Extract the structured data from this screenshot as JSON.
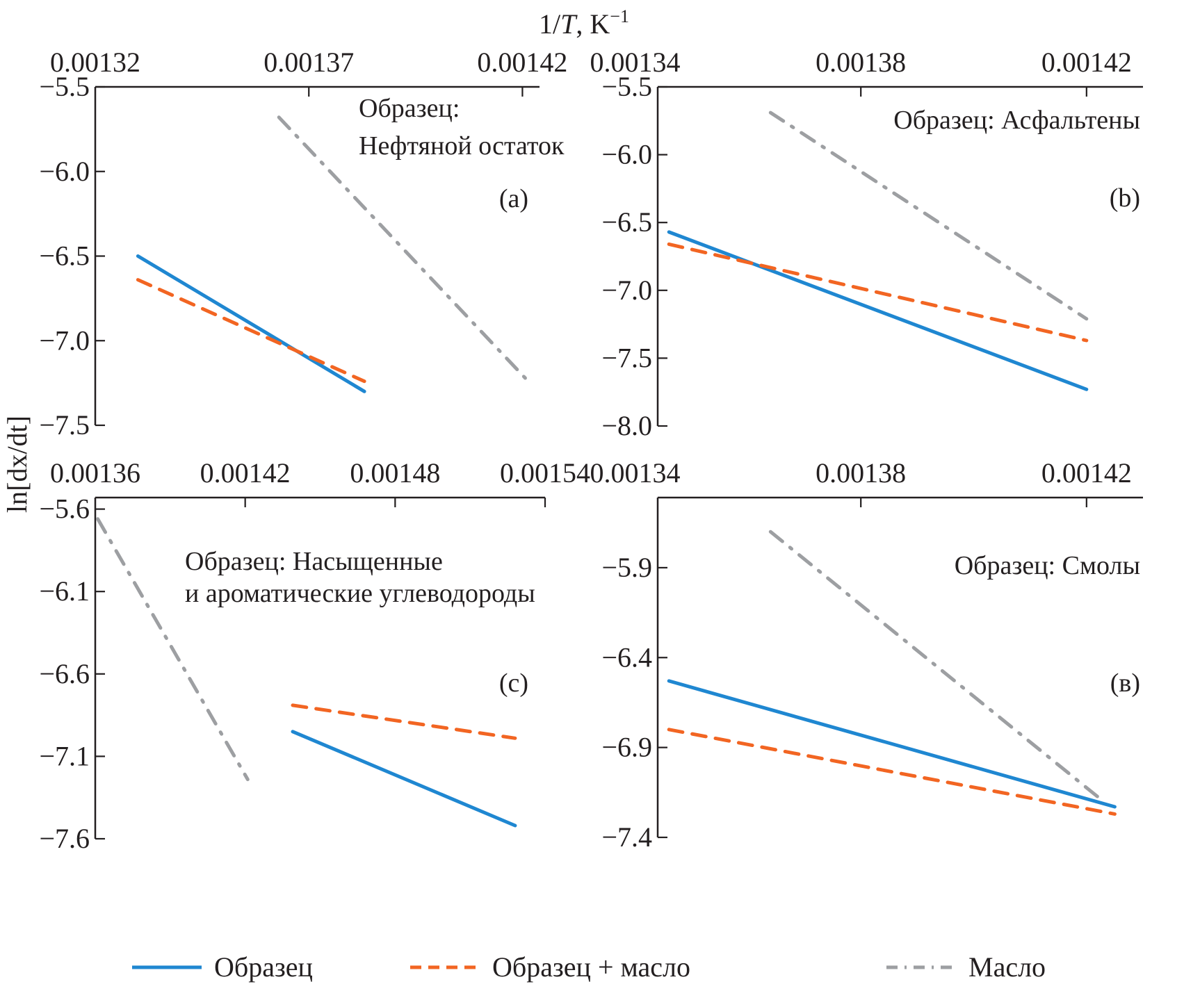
{
  "chart_data": {
    "type": "line",
    "top_xlabel": "1/T, K⁻¹",
    "ylabel": "ln[dx/dt]",
    "legend": {
      "placement": "bottom",
      "entries": [
        {
          "name": "Образец",
          "style": "solid",
          "color": "#1f87d1"
        },
        {
          "name": "Образец + масло",
          "style": "dashed",
          "color": "#f26522"
        },
        {
          "name": "Масло",
          "style": "dashdot",
          "color": "#9d9fa2"
        }
      ]
    },
    "panels": [
      {
        "id": "a",
        "tag": "(a)",
        "title_lines": [
          "Образец:",
          "Нефтяной остаток"
        ],
        "xlim": [
          0.00132,
          0.001424
        ],
        "xticks": [
          0.00132,
          0.00137,
          0.00142
        ],
        "xtick_labels": [
          "0.00132",
          "0.00137",
          "0.00142"
        ],
        "ylim": [
          -7.5,
          -5.5
        ],
        "yticks": [
          -5.5,
          -6.0,
          -6.5,
          -7.0,
          -7.5
        ],
        "ytick_labels": [
          "−5.5",
          "−6.0",
          "−6.5",
          "−7.0",
          "−7.5"
        ],
        "series": [
          {
            "name": "Образец",
            "x": [
              0.00133,
              0.001383
            ],
            "y": [
              -6.5,
              -7.3
            ]
          },
          {
            "name": "Образец + масло",
            "x": [
              0.00133,
              0.001383
            ],
            "y": [
              -6.64,
              -7.24
            ]
          },
          {
            "name": "Масло",
            "x": [
              0.001363,
              0.001421
            ],
            "y": [
              -5.68,
              -7.23
            ]
          }
        ]
      },
      {
        "id": "b",
        "tag": "(b)",
        "title_lines": [
          "Образец: Асфальтены"
        ],
        "xlim": [
          0.001344,
          0.00143
        ],
        "xticks": [
          0.00134,
          0.00138,
          0.00142
        ],
        "xtick_labels": [
          "0.00134",
          "0.00138",
          "0.00142"
        ],
        "ylim": [
          -8.0,
          -5.5
        ],
        "yticks": [
          -5.5,
          -6.0,
          -6.5,
          -7.0,
          -7.5,
          -8.0
        ],
        "ytick_labels": [
          "−5.5",
          "−6.0",
          "−6.5",
          "−7.0",
          "−7.5",
          "−8.0"
        ],
        "series": [
          {
            "name": "Образец",
            "x": [
              0.001346,
              0.00142
            ],
            "y": [
              -6.57,
              -7.73
            ]
          },
          {
            "name": "Образец + масло",
            "x": [
              0.001346,
              0.00142
            ],
            "y": [
              -6.66,
              -7.37
            ]
          },
          {
            "name": "Масло",
            "x": [
              0.001364,
              0.00142
            ],
            "y": [
              -5.69,
              -7.21
            ]
          }
        ]
      },
      {
        "id": "c",
        "tag": "(c)",
        "title_lines": [
          "Образец: Насыщенные",
          "и ароматические углеводороды"
        ],
        "xlim": [
          0.00136,
          0.00154
        ],
        "xticks": [
          0.00136,
          0.00142,
          0.00148,
          0.00154
        ],
        "xtick_labels": [
          "0.00136",
          "0.00142",
          "0.00148",
          "0.00154"
        ],
        "ylim": [
          -7.6,
          -5.53
        ],
        "yticks": [
          -5.6,
          -6.1,
          -6.6,
          -7.1,
          -7.6
        ],
        "ytick_labels": [
          "−5.6",
          "−6.1",
          "−6.6",
          "−7.1",
          "−7.6"
        ],
        "series": [
          {
            "name": "Образец",
            "x": [
              0.001439,
              0.001528
            ],
            "y": [
              -6.95,
              -7.52
            ]
          },
          {
            "name": "Образец + масло",
            "x": [
              0.001439,
              0.001528
            ],
            "y": [
              -6.79,
              -6.99
            ]
          },
          {
            "name": "Масло",
            "x": [
              0.001361,
              0.001421
            ],
            "y": [
              -5.66,
              -7.24
            ]
          }
        ]
      },
      {
        "id": "d",
        "tag": "(в)",
        "title_lines": [
          "Образец: Смолы"
        ],
        "xlim": [
          0.001344,
          0.00143
        ],
        "xticks": [
          0.00134,
          0.00138,
          0.00142
        ],
        "xtick_labels": [
          "0.00134",
          "0.00138",
          "0.00142"
        ],
        "ylim": [
          -7.4,
          -5.51
        ],
        "yticks": [
          -5.9,
          -6.4,
          -6.9,
          -7.4
        ],
        "ytick_labels": [
          "−5.9",
          "−6.4",
          "−6.9",
          "−7.4"
        ],
        "series": [
          {
            "name": "Образец",
            "x": [
              0.001346,
              0.001425
            ],
            "y": [
              -6.53,
              -7.23
            ]
          },
          {
            "name": "Образец + масло",
            "x": [
              0.001346,
              0.001425
            ],
            "y": [
              -6.8,
              -7.27
            ]
          },
          {
            "name": "Масло",
            "x": [
              0.001364,
              0.001423
            ],
            "y": [
              -5.7,
              -7.2
            ]
          }
        ]
      }
    ]
  }
}
